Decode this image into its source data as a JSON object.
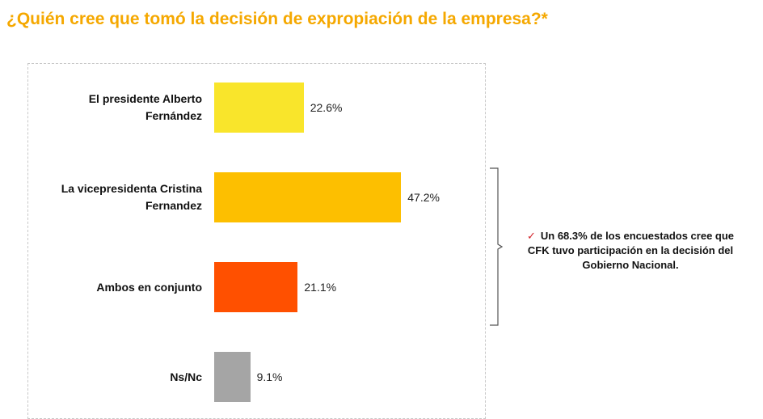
{
  "title": "¿Quién cree que tomó la decisión de expropiación de la empresa?*",
  "chart_data": {
    "type": "bar",
    "orientation": "horizontal",
    "categories": [
      "El presidente Alberto Fernández",
      "La vicepresidenta  Cristina Fernandez",
      "Ambos en conjunto",
      "Ns/Nc"
    ],
    "values": [
      22.6,
      47.2,
      21.1,
      9.1
    ],
    "value_labels": [
      "22.6%",
      "47.2%",
      "21.1%",
      "9.1%"
    ],
    "colors": [
      "#f9e52b",
      "#fdbf00",
      "#ff5000",
      "#a5a5a5"
    ],
    "xlim": [
      0,
      100
    ],
    "title": "",
    "xlabel": "",
    "ylabel": "",
    "grid": false
  },
  "annotation": {
    "check_icon": "check-icon",
    "check_color": "#d2232a",
    "text": "Un 68.3% de los encuestados cree que CFK tuvo participación en la decisión del Gobierno Nacional."
  },
  "colors": {
    "title": "#f5a800"
  }
}
